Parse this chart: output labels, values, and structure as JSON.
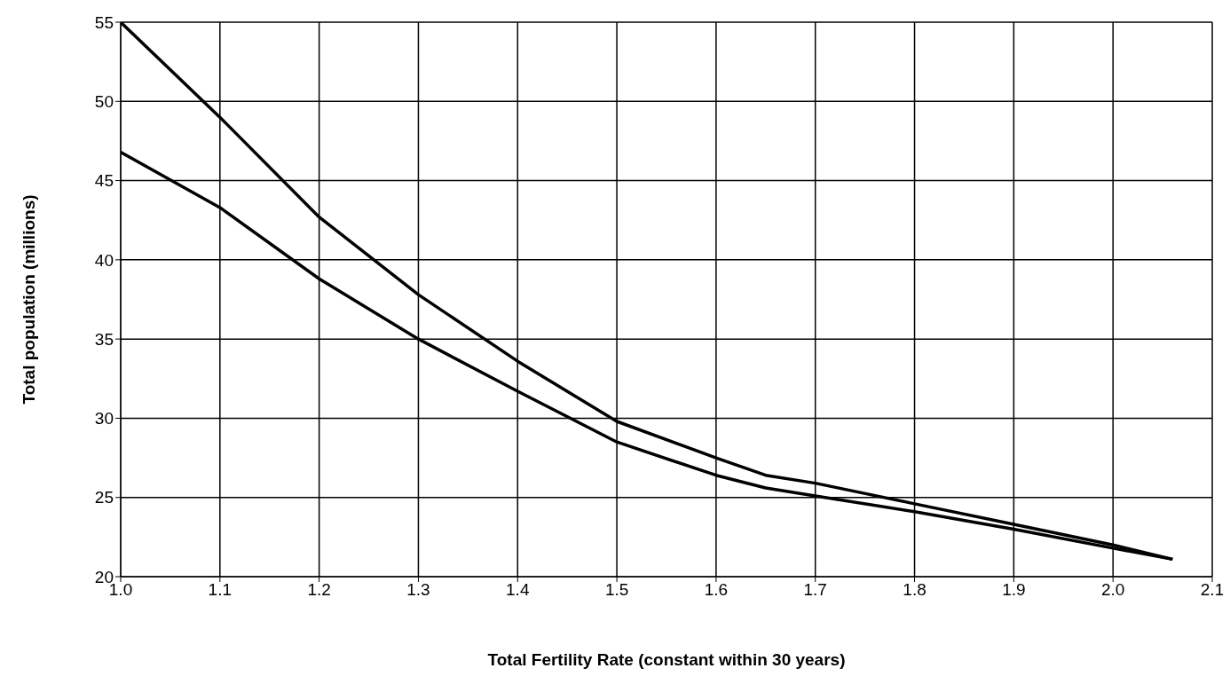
{
  "chart_data": {
    "type": "line",
    "xlabel": "Total Fertility Rate (constant within 30 years)",
    "ylabel": "Total population (millions)",
    "x": [
      1.0,
      1.1,
      1.2,
      1.3,
      1.4,
      1.5,
      1.6,
      1.65,
      1.7,
      1.8,
      1.9,
      2.0,
      2.06
    ],
    "series": [
      {
        "color": "#000000",
        "values": [
          55,
          49.0,
          42.7,
          37.8,
          33.6,
          29.8,
          27.5,
          26.4,
          25.9,
          24.6,
          23.3,
          22.0,
          21.1
        ]
      },
      {
        "color": "#000000",
        "values": [
          46.8,
          43.3,
          38.8,
          35.0,
          31.7,
          28.5,
          26.4,
          25.6,
          25.1,
          24.1,
          23.0,
          21.8,
          21.1
        ]
      }
    ],
    "xlim": [
      1.0,
      2.1
    ],
    "xticks": [
      {
        "value": 1.0,
        "label": "1.0"
      },
      1.1,
      1.2,
      1.3,
      1.4,
      1.5,
      1.6,
      1.7,
      1.8,
      1.9,
      {
        "value": 2.0,
        "label": "2.0"
      },
      2.1
    ],
    "ylim": [
      20,
      55
    ],
    "yticks": [
      20,
      25,
      30,
      35,
      40,
      45,
      50,
      55
    ],
    "grid": true,
    "legend": false,
    "marker": "none",
    "line_style": "solid"
  }
}
